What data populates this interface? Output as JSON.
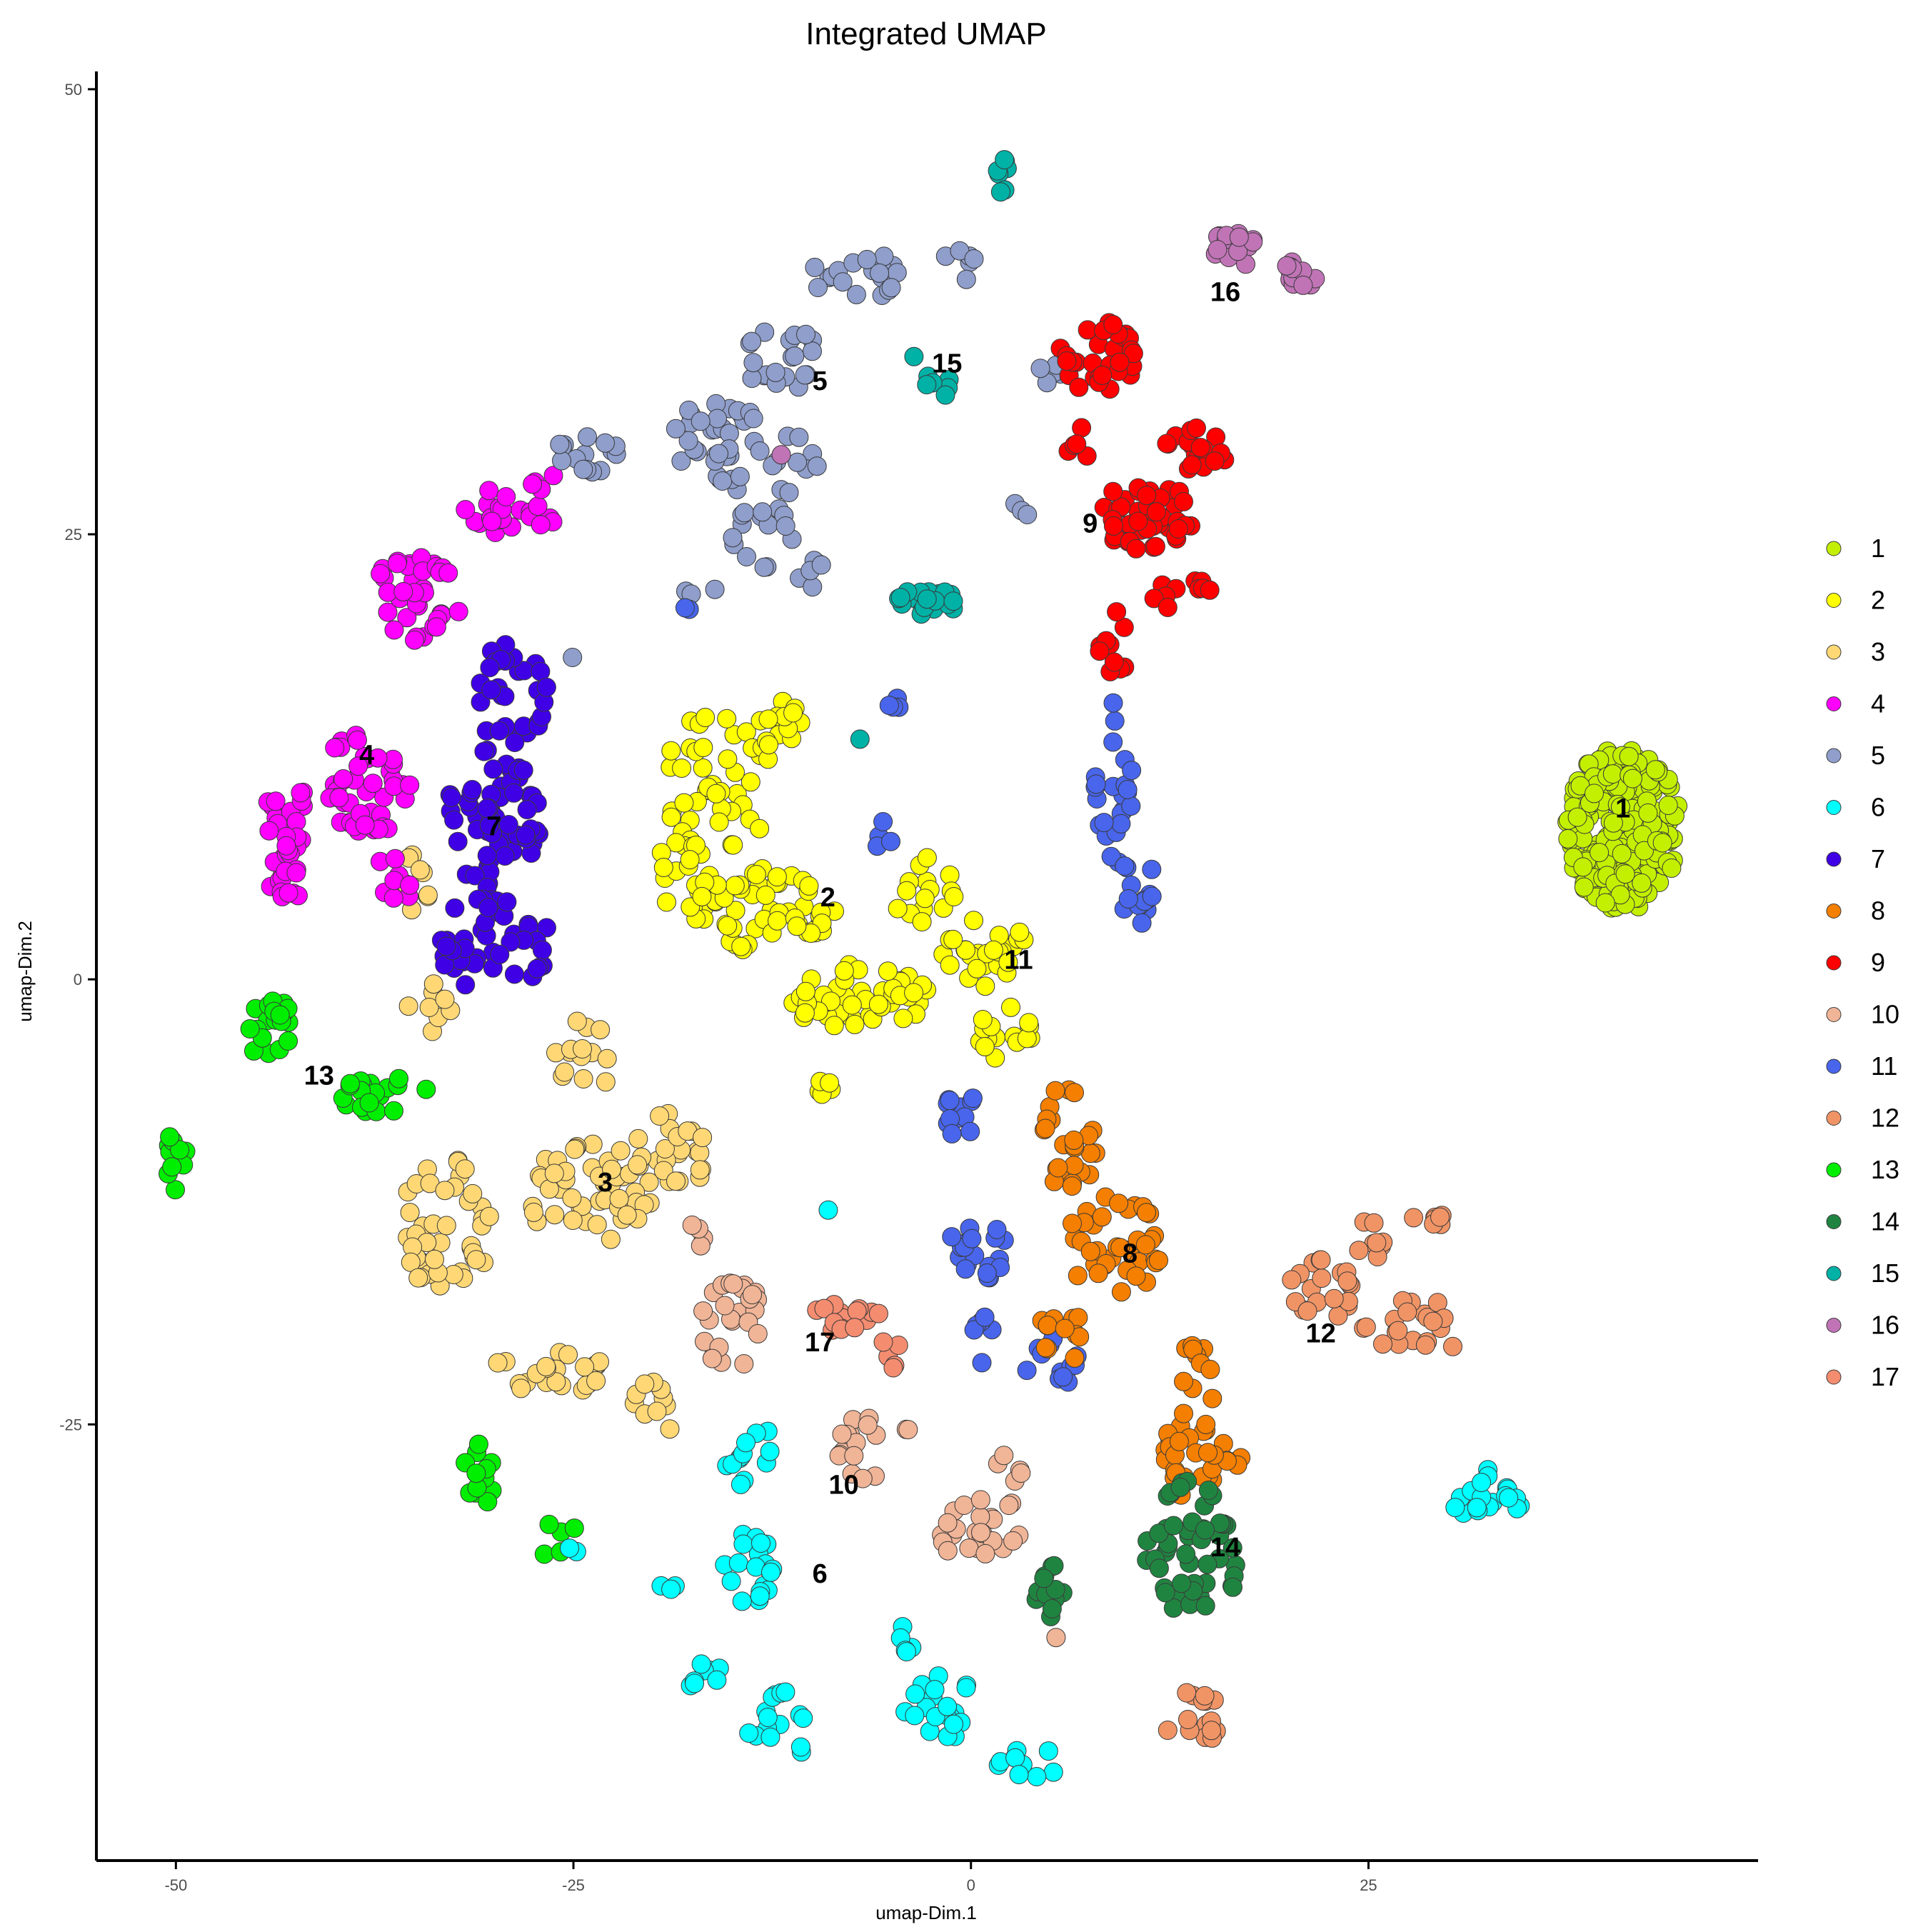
{
  "chart_data": {
    "type": "scatter",
    "title": "Integrated UMAP",
    "xlabel": "umap-Dim.1",
    "ylabel": "umap-Dim.2",
    "xlim": [
      -55,
      49.5
    ],
    "ylim": [
      -49.5,
      51
    ],
    "x_ticks": [
      -50,
      -25,
      0,
      25
    ],
    "y_ticks": [
      -25,
      0,
      25,
      50
    ],
    "x_tick_labels": [
      "-50",
      "-25",
      "0",
      "25"
    ],
    "y_tick_labels": [
      "-25",
      "0",
      "25",
      "50"
    ],
    "grid": false,
    "legend_position": "right",
    "series": [
      {
        "name": "1",
        "color": "#c3f000",
        "blobs": [
          [
            41,
            8.5,
            3.6,
            4.6,
            240
          ]
        ]
      },
      {
        "name": "2",
        "color": "#ffff00",
        "blobs": [
          [
            -16,
            11,
            3.5,
            4,
            40
          ],
          [
            -13,
            4,
            4.5,
            2.5,
            55
          ],
          [
            -7,
            -1,
            4.5,
            2,
            45
          ],
          [
            1,
            1.5,
            3,
            2,
            25
          ],
          [
            -18,
            6,
            2.5,
            2,
            20
          ],
          [
            -12,
            14,
            1.5,
            2,
            15
          ],
          [
            -3,
            5,
            2,
            2,
            15
          ],
          [
            2,
            -3,
            2,
            1.5,
            15
          ],
          [
            -9,
            -6,
            0.7,
            1.5,
            5
          ]
        ]
      },
      {
        "name": "3",
        "color": "#ffd875",
        "blobs": [
          [
            -33,
            -14,
            3,
            4,
            45
          ],
          [
            -24,
            -12,
            4,
            3,
            50
          ],
          [
            -19,
            -10,
            2.5,
            2.5,
            25
          ],
          [
            -24,
            -4,
            2.5,
            2,
            15
          ],
          [
            -27,
            -22,
            4,
            1.5,
            25
          ],
          [
            -20,
            -24,
            2,
            1.5,
            10
          ],
          [
            -34,
            -1,
            1.5,
            2,
            8
          ],
          [
            -35,
            5,
            1,
            2,
            8
          ]
        ]
      },
      {
        "name": "4",
        "color": "#ff00ff",
        "blobs": [
          [
            -43,
            8,
            1.5,
            4,
            35
          ],
          [
            -38,
            11,
            3,
            3,
            45
          ],
          [
            -35,
            21,
            3,
            3,
            35
          ],
          [
            -30,
            26,
            2,
            1.5,
            15
          ],
          [
            -36,
            6,
            1.5,
            1.5,
            8
          ],
          [
            -27,
            27,
            1.5,
            1.5,
            10
          ]
        ]
      },
      {
        "name": "7",
        "color": "#3f00e6",
        "blobs": [
          [
            -30,
            9,
            3,
            4,
            60
          ],
          [
            -30,
            2,
            3.5,
            3,
            45
          ],
          [
            -29,
            16,
            2.5,
            3,
            30
          ]
        ]
      },
      {
        "name": "5",
        "color": "#8f9ecb",
        "blobs": [
          [
            -7,
            39.5,
            3,
            1.5,
            20
          ],
          [
            -1,
            40,
            1.5,
            1,
            6
          ],
          [
            -12,
            35,
            2.5,
            2,
            20
          ],
          [
            -16,
            30,
            3,
            3,
            35
          ],
          [
            -13,
            25,
            2,
            2,
            15
          ],
          [
            -24,
            29.5,
            2.5,
            1,
            15
          ],
          [
            -11,
            29,
            1.5,
            2,
            10
          ],
          [
            -10,
            23,
            1.2,
            1,
            6
          ],
          [
            -17,
            21.5,
            1,
            1,
            3
          ],
          [
            5,
            34.5,
            1.5,
            1,
            6
          ],
          [
            3,
            26.5,
            1,
            0.5,
            3
          ],
          [
            -25,
            18,
            0.3,
            0.3,
            1
          ]
        ]
      },
      {
        "name": "9",
        "color": "#ff0000",
        "blobs": [
          [
            8,
            35,
            2.5,
            2,
            30
          ],
          [
            11,
            26,
            3,
            2,
            45
          ],
          [
            14,
            29.5,
            2,
            1.5,
            20
          ],
          [
            9,
            19,
            1,
            2,
            10
          ],
          [
            13.5,
            21.5,
            2,
            1,
            10
          ],
          [
            7,
            30,
            1,
            1,
            5
          ]
        ]
      },
      {
        "name": "11",
        "color": "#4865eb",
        "blobs": [
          [
            9,
            11,
            1.2,
            5,
            25
          ],
          [
            10.5,
            5,
            1.2,
            2.5,
            15
          ],
          [
            -1,
            -7.5,
            1.5,
            1.5,
            12
          ],
          [
            0.5,
            -15,
            1.8,
            2,
            20
          ],
          [
            5,
            -21.5,
            1.8,
            1.5,
            12
          ],
          [
            -5,
            15.5,
            0.5,
            0.7,
            4
          ],
          [
            -5.5,
            8,
            0.5,
            1,
            4
          ],
          [
            -18,
            20.5,
            0.5,
            0.5,
            2
          ],
          [
            1,
            -20,
            1,
            2,
            6
          ]
        ]
      },
      {
        "name": "8",
        "color": "#f47f00",
        "blobs": [
          [
            6,
            -9,
            2,
            3,
            25
          ],
          [
            9,
            -15,
            3,
            3,
            40
          ],
          [
            14,
            -25,
            2,
            4.5,
            35
          ],
          [
            6,
            -20,
            2,
            1.5,
            12
          ],
          [
            16,
            -27,
            1.5,
            1.5,
            8
          ]
        ]
      },
      {
        "name": "10",
        "color": "#f0b497",
        "blobs": [
          [
            -15,
            -19,
            2,
            3,
            25
          ],
          [
            -7,
            -26.5,
            1.5,
            2,
            15
          ],
          [
            1,
            -31,
            3,
            2,
            25
          ],
          [
            2.5,
            -27.5,
            1,
            1,
            5
          ],
          [
            -17,
            -14,
            1,
            1,
            4
          ],
          [
            -4,
            -25.5,
            0.5,
            0.5,
            2
          ],
          [
            5.5,
            -37,
            0.3,
            0.3,
            1
          ]
        ]
      },
      {
        "name": "12",
        "color": "#f09466",
        "blobs": [
          [
            22,
            -17.5,
            2,
            2,
            20
          ],
          [
            25,
            -15,
            1,
            1.5,
            8
          ],
          [
            29,
            -13.5,
            1.5,
            0.6,
            8
          ],
          [
            28,
            -19.5,
            3.5,
            1.5,
            20
          ],
          [
            14,
            -41.5,
            2,
            1.5,
            15
          ]
        ]
      },
      {
        "name": "13",
        "color": "#00ee00",
        "blobs": [
          [
            -44,
            -3,
            1.5,
            2,
            20
          ],
          [
            -37,
            -6.5,
            3,
            1,
            20
          ],
          [
            -50,
            -10,
            0.8,
            2,
            10
          ],
          [
            -31,
            -28,
            1,
            2,
            12
          ],
          [
            -26,
            -31.5,
            1.5,
            1,
            5
          ]
        ]
      },
      {
        "name": "14",
        "color": "#208441",
        "blobs": [
          [
            14,
            -32,
            3,
            4,
            50
          ],
          [
            5,
            -34,
            1,
            2,
            12
          ]
        ]
      },
      {
        "name": "6",
        "color": "#00ffff",
        "blobs": [
          [
            -14,
            -26.5,
            1.5,
            2,
            12
          ],
          [
            -14,
            -33,
            2,
            2,
            20
          ],
          [
            -12,
            -42,
            2,
            2,
            15
          ],
          [
            -17,
            -39,
            1.5,
            1,
            8
          ],
          [
            -19,
            -34,
            0.5,
            0.5,
            3
          ],
          [
            -2,
            -41,
            2.5,
            2,
            20
          ],
          [
            3.5,
            -44,
            2,
            1,
            10
          ],
          [
            32.5,
            -29,
            2.5,
            1.5,
            20
          ],
          [
            -4,
            -37,
            0.5,
            1,
            5
          ],
          [
            -25,
            -32,
            0.3,
            0.3,
            2
          ],
          [
            -9,
            -13,
            0.1,
            0.1,
            1
          ]
        ]
      },
      {
        "name": "15",
        "color": "#00b1a6",
        "blobs": [
          [
            2,
            45.5,
            0.5,
            0.6,
            5
          ],
          [
            2,
            44,
            0.2,
            0.5,
            2
          ],
          [
            -2,
            33.5,
            0.8,
            0.8,
            6
          ],
          [
            -3,
            21.2,
            2.5,
            0.7,
            20
          ],
          [
            -7,
            13.5,
            0.1,
            0.1,
            1
          ],
          [
            -3.5,
            35,
            0.2,
            0.2,
            1
          ]
        ]
      },
      {
        "name": "16",
        "color": "#c074b6",
        "blobs": [
          [
            16.5,
            41,
            1.5,
            1,
            15
          ],
          [
            20.5,
            39.5,
            1.2,
            1,
            12
          ],
          [
            -12,
            29.5,
            0.1,
            0.1,
            1
          ]
        ]
      },
      {
        "name": "17",
        "color": "#f48c70",
        "blobs": [
          [
            -8,
            -19,
            2.5,
            0.8,
            15
          ],
          [
            -5,
            -21,
            0.8,
            1,
            5
          ]
        ]
      }
    ],
    "cluster_labels": [
      {
        "text": "1",
        "x": 41,
        "y": 9.5
      },
      {
        "text": "2",
        "x": -9,
        "y": 4.5
      },
      {
        "text": "3",
        "x": -23,
        "y": -11.5
      },
      {
        "text": "4",
        "x": -38,
        "y": 12.5
      },
      {
        "text": "5",
        "x": -9.5,
        "y": 33.5
      },
      {
        "text": "6",
        "x": -9.5,
        "y": -33.5
      },
      {
        "text": "7",
        "x": -30,
        "y": 8.5
      },
      {
        "text": "8",
        "x": 10,
        "y": -15.5
      },
      {
        "text": "9",
        "x": 7.5,
        "y": 25.5
      },
      {
        "text": "10",
        "x": -8,
        "y": -28.5
      },
      {
        "text": "11",
        "x": 3,
        "y": 1
      },
      {
        "text": "12",
        "x": 22,
        "y": -20
      },
      {
        "text": "13",
        "x": -41,
        "y": -5.5
      },
      {
        "text": "14",
        "x": 16,
        "y": -32
      },
      {
        "text": "15",
        "x": -1.5,
        "y": 34.5
      },
      {
        "text": "16",
        "x": 16,
        "y": 38.5
      },
      {
        "text": "17",
        "x": -9.5,
        "y": -20.5
      }
    ]
  }
}
